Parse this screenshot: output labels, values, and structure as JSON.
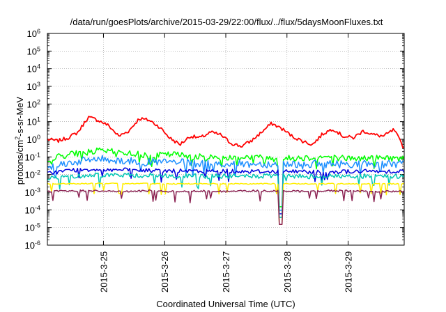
{
  "chart_data": {
    "type": "line",
    "title": "/data/run/goesPlots/archive/2015-03-29/22:00/flux/../flux/5daysMoonFluxes.txt",
    "xlabel": "Coordinated Universal Time (UTC)",
    "ylabel_parts": [
      "protons/cm",
      "2",
      "-s-sr-MeV"
    ],
    "y_scale": "log",
    "ylim": [
      1e-06,
      1000000
    ],
    "y_ticks": [
      {
        "base": "10",
        "exp": "-6"
      },
      {
        "base": "10",
        "exp": "-5"
      },
      {
        "base": "10",
        "exp": "-4"
      },
      {
        "base": "10",
        "exp": "-3"
      },
      {
        "base": "10",
        "exp": "-2"
      },
      {
        "base": "10",
        "exp": "-1"
      },
      {
        "base": "10",
        "exp": "0"
      },
      {
        "base": "10",
        "exp": "1"
      },
      {
        "base": "10",
        "exp": "2"
      },
      {
        "base": "10",
        "exp": "3"
      },
      {
        "base": "10",
        "exp": "4"
      },
      {
        "base": "10",
        "exp": "5"
      },
      {
        "base": "10",
        "exp": "6"
      }
    ],
    "x_range_days": [
      "2015-03-24 02:00",
      "2015-03-29 22:00"
    ],
    "x_ticks": [
      "2015-3-25",
      "2015-3-26",
      "2015-3-27",
      "2015-3-28",
      "2015-3-29"
    ],
    "grid": true,
    "series": [
      {
        "color": "#ff0000",
        "x": [
          "2015-03-24 02:00",
          "2015-03-24 06:00",
          "2015-03-24 10:00",
          "2015-03-24 14:00",
          "2015-03-24 18:00",
          "2015-03-24 22:00",
          "2015-03-25 02:00",
          "2015-03-25 06:00",
          "2015-03-25 10:00",
          "2015-03-25 14:00",
          "2015-03-25 18:00",
          "2015-03-25 22:00",
          "2015-03-26 02:00",
          "2015-03-26 06:00",
          "2015-03-26 10:00",
          "2015-03-26 14:00",
          "2015-03-26 18:00",
          "2015-03-26 22:00",
          "2015-03-27 02:00",
          "2015-03-27 06:00",
          "2015-03-27 10:00",
          "2015-03-27 14:00",
          "2015-03-27 18:00",
          "2015-03-27 22:00",
          "2015-03-28 02:00",
          "2015-03-28 06:00",
          "2015-03-28 10:00",
          "2015-03-28 14:00",
          "2015-03-28 18:00",
          "2015-03-28 22:00",
          "2015-03-29 02:00",
          "2015-03-29 06:00",
          "2015-03-29 10:00",
          "2015-03-29 14:00",
          "2015-03-29 18:00",
          "2015-03-29 22:00"
        ],
        "values": [
          1.0,
          0.8,
          1.2,
          2.5,
          18,
          12,
          6,
          1.5,
          3,
          15,
          12,
          5,
          1.2,
          0.5,
          1.5,
          1.2,
          2.5,
          1.8,
          0.6,
          0.4,
          0.8,
          2.5,
          8,
          4,
          1.5,
          0.8,
          0.5,
          2.0,
          4,
          1.5,
          1.2,
          3,
          1.8,
          1.5,
          3.5,
          0.3
        ]
      },
      {
        "color": "#00ff00",
        "x": [
          "2015-03-24 02:00",
          "2015-03-24 12:00",
          "2015-03-24 22:00",
          "2015-03-25 08:00",
          "2015-03-25 18:00",
          "2015-03-26 04:00",
          "2015-03-26 14:00",
          "2015-03-27 00:00",
          "2015-03-27 10:00",
          "2015-03-27 20:00",
          "2015-03-28 06:00",
          "2015-03-28 16:00",
          "2015-03-29 02:00",
          "2015-03-29 12:00",
          "2015-03-29 22:00"
        ],
        "values": [
          0.08,
          0.15,
          0.22,
          0.18,
          0.12,
          0.14,
          0.1,
          0.09,
          0.1,
          0.08,
          0.09,
          0.1,
          0.08,
          0.09,
          0.08
        ]
      },
      {
        "color": "#1e90ff",
        "x": [
          "2015-03-24 02:00",
          "2015-03-24 12:00",
          "2015-03-24 22:00",
          "2015-03-25 08:00",
          "2015-03-25 18:00",
          "2015-03-26 04:00",
          "2015-03-26 14:00",
          "2015-03-27 00:00",
          "2015-03-27 10:00",
          "2015-03-27 20:00",
          "2015-03-28 06:00",
          "2015-03-28 16:00",
          "2015-03-29 02:00",
          "2015-03-29 12:00",
          "2015-03-29 22:00"
        ],
        "values": [
          0.03,
          0.05,
          0.08,
          0.06,
          0.05,
          0.05,
          0.04,
          0.04,
          0.04,
          0.04,
          0.04,
          0.04,
          0.04,
          0.04,
          0.04
        ]
      },
      {
        "color": "#0000dd",
        "x": [
          "2015-03-24 02:00",
          "2015-03-24 12:00",
          "2015-03-24 22:00",
          "2015-03-25 08:00",
          "2015-03-25 18:00",
          "2015-03-26 04:00",
          "2015-03-26 14:00",
          "2015-03-27 00:00",
          "2015-03-27 10:00",
          "2015-03-27 20:00",
          "2015-03-28 06:00",
          "2015-03-28 16:00",
          "2015-03-29 02:00",
          "2015-03-29 12:00",
          "2015-03-29 22:00"
        ],
        "values": [
          0.012,
          0.018,
          0.02,
          0.018,
          0.017,
          0.016,
          0.015,
          0.016,
          0.015,
          0.015,
          0.015,
          0.014,
          0.015,
          0.015,
          0.016
        ]
      },
      {
        "color": "#00c8b4",
        "x": [
          "2015-03-24 02:00",
          "2015-03-24 12:00",
          "2015-03-24 22:00",
          "2015-03-25 08:00",
          "2015-03-25 18:00",
          "2015-03-26 04:00",
          "2015-03-26 14:00",
          "2015-03-27 00:00",
          "2015-03-27 10:00",
          "2015-03-27 20:00",
          "2015-03-28 06:00",
          "2015-03-28 16:00",
          "2015-03-29 02:00",
          "2015-03-29 12:00",
          "2015-03-29 22:00"
        ],
        "values": [
          0.006,
          0.008,
          0.01,
          0.009,
          0.009,
          0.008,
          0.008,
          0.008,
          0.008,
          0.008,
          0.008,
          0.008,
          0.008,
          0.008,
          0.008
        ]
      },
      {
        "color": "#ffee00",
        "x": [
          "2015-03-24 02:00",
          "2015-03-24 12:00",
          "2015-03-24 22:00",
          "2015-03-25 08:00",
          "2015-03-25 18:00",
          "2015-03-26 04:00",
          "2015-03-26 14:00",
          "2015-03-27 00:00",
          "2015-03-27 10:00",
          "2015-03-27 20:00",
          "2015-03-28 06:00",
          "2015-03-28 16:00",
          "2015-03-29 02:00",
          "2015-03-29 12:00",
          "2015-03-29 22:00"
        ],
        "values": [
          0.003,
          0.003,
          0.0032,
          0.003,
          0.0031,
          0.003,
          0.003,
          0.003,
          0.003,
          0.003,
          0.003,
          0.003,
          0.003,
          0.003,
          0.003
        ]
      },
      {
        "color": "#8b2252",
        "x": [
          "2015-03-24 02:00",
          "2015-03-24 12:00",
          "2015-03-24 22:00",
          "2015-03-25 08:00",
          "2015-03-25 18:00",
          "2015-03-26 04:00",
          "2015-03-26 14:00",
          "2015-03-27 00:00",
          "2015-03-27 10:00",
          "2015-03-27 20:00",
          "2015-03-28 06:00",
          "2015-03-28 16:00",
          "2015-03-29 02:00",
          "2015-03-29 12:00",
          "2015-03-29 22:00"
        ],
        "values": [
          0.0011,
          0.0012,
          0.0012,
          0.0011,
          0.0012,
          0.0011,
          0.0012,
          0.0011,
          0.0012,
          0.0012,
          0.0011,
          0.0012,
          0.0012,
          0.0011,
          0.0011
        ]
      }
    ],
    "dropout": {
      "x": "2015-03-27 21:30",
      "min_value": 1.5e-05
    }
  }
}
